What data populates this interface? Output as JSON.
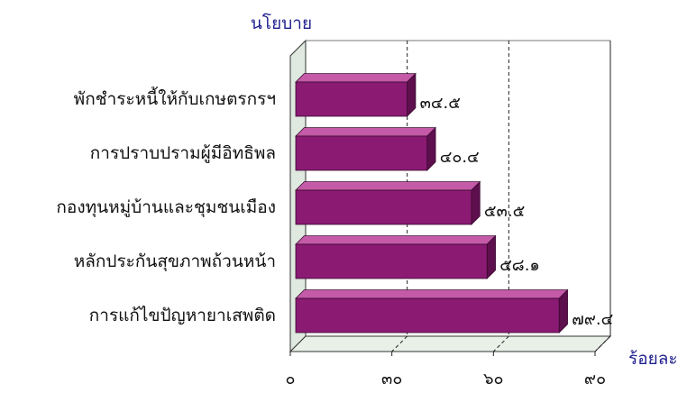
{
  "chart_data": {
    "type": "bar",
    "orientation": "horizontal",
    "categories": [
      "พักชำระหนี้ให้กับเกษตรกรฯ",
      "การปราบปรามผู้มีอิทธิพล",
      "กองทุนหมู่บ้านและชุมชนเมือง",
      "หลักประกันสุขภาพถ้วนหน้า",
      "การแก้ไขปัญหายาเสพติด"
    ],
    "values": [
      34.5,
      40.4,
      53.5,
      58.1,
      79.4
    ],
    "value_labels": [
      "๓๔.๕",
      "๔๐.๔",
      "๕๓.๕",
      "๕๘.๑",
      "๗๙.๔"
    ],
    "category_axis_title": "นโยบาย",
    "value_axis_title": "ร้อยละ",
    "xlim": [
      0,
      90
    ],
    "ticks": [
      0,
      30,
      60,
      90
    ],
    "tick_labels": [
      "๐",
      "๓๐",
      "๖๐",
      "๙๐"
    ],
    "gridlines": "dashed vertical at 30 and 60",
    "bar_color": "#8b1a73",
    "bar_top_color": "#c45aa8",
    "bar_side_color": "#5e0f4d",
    "floor_color": "#e8f0e8"
  }
}
